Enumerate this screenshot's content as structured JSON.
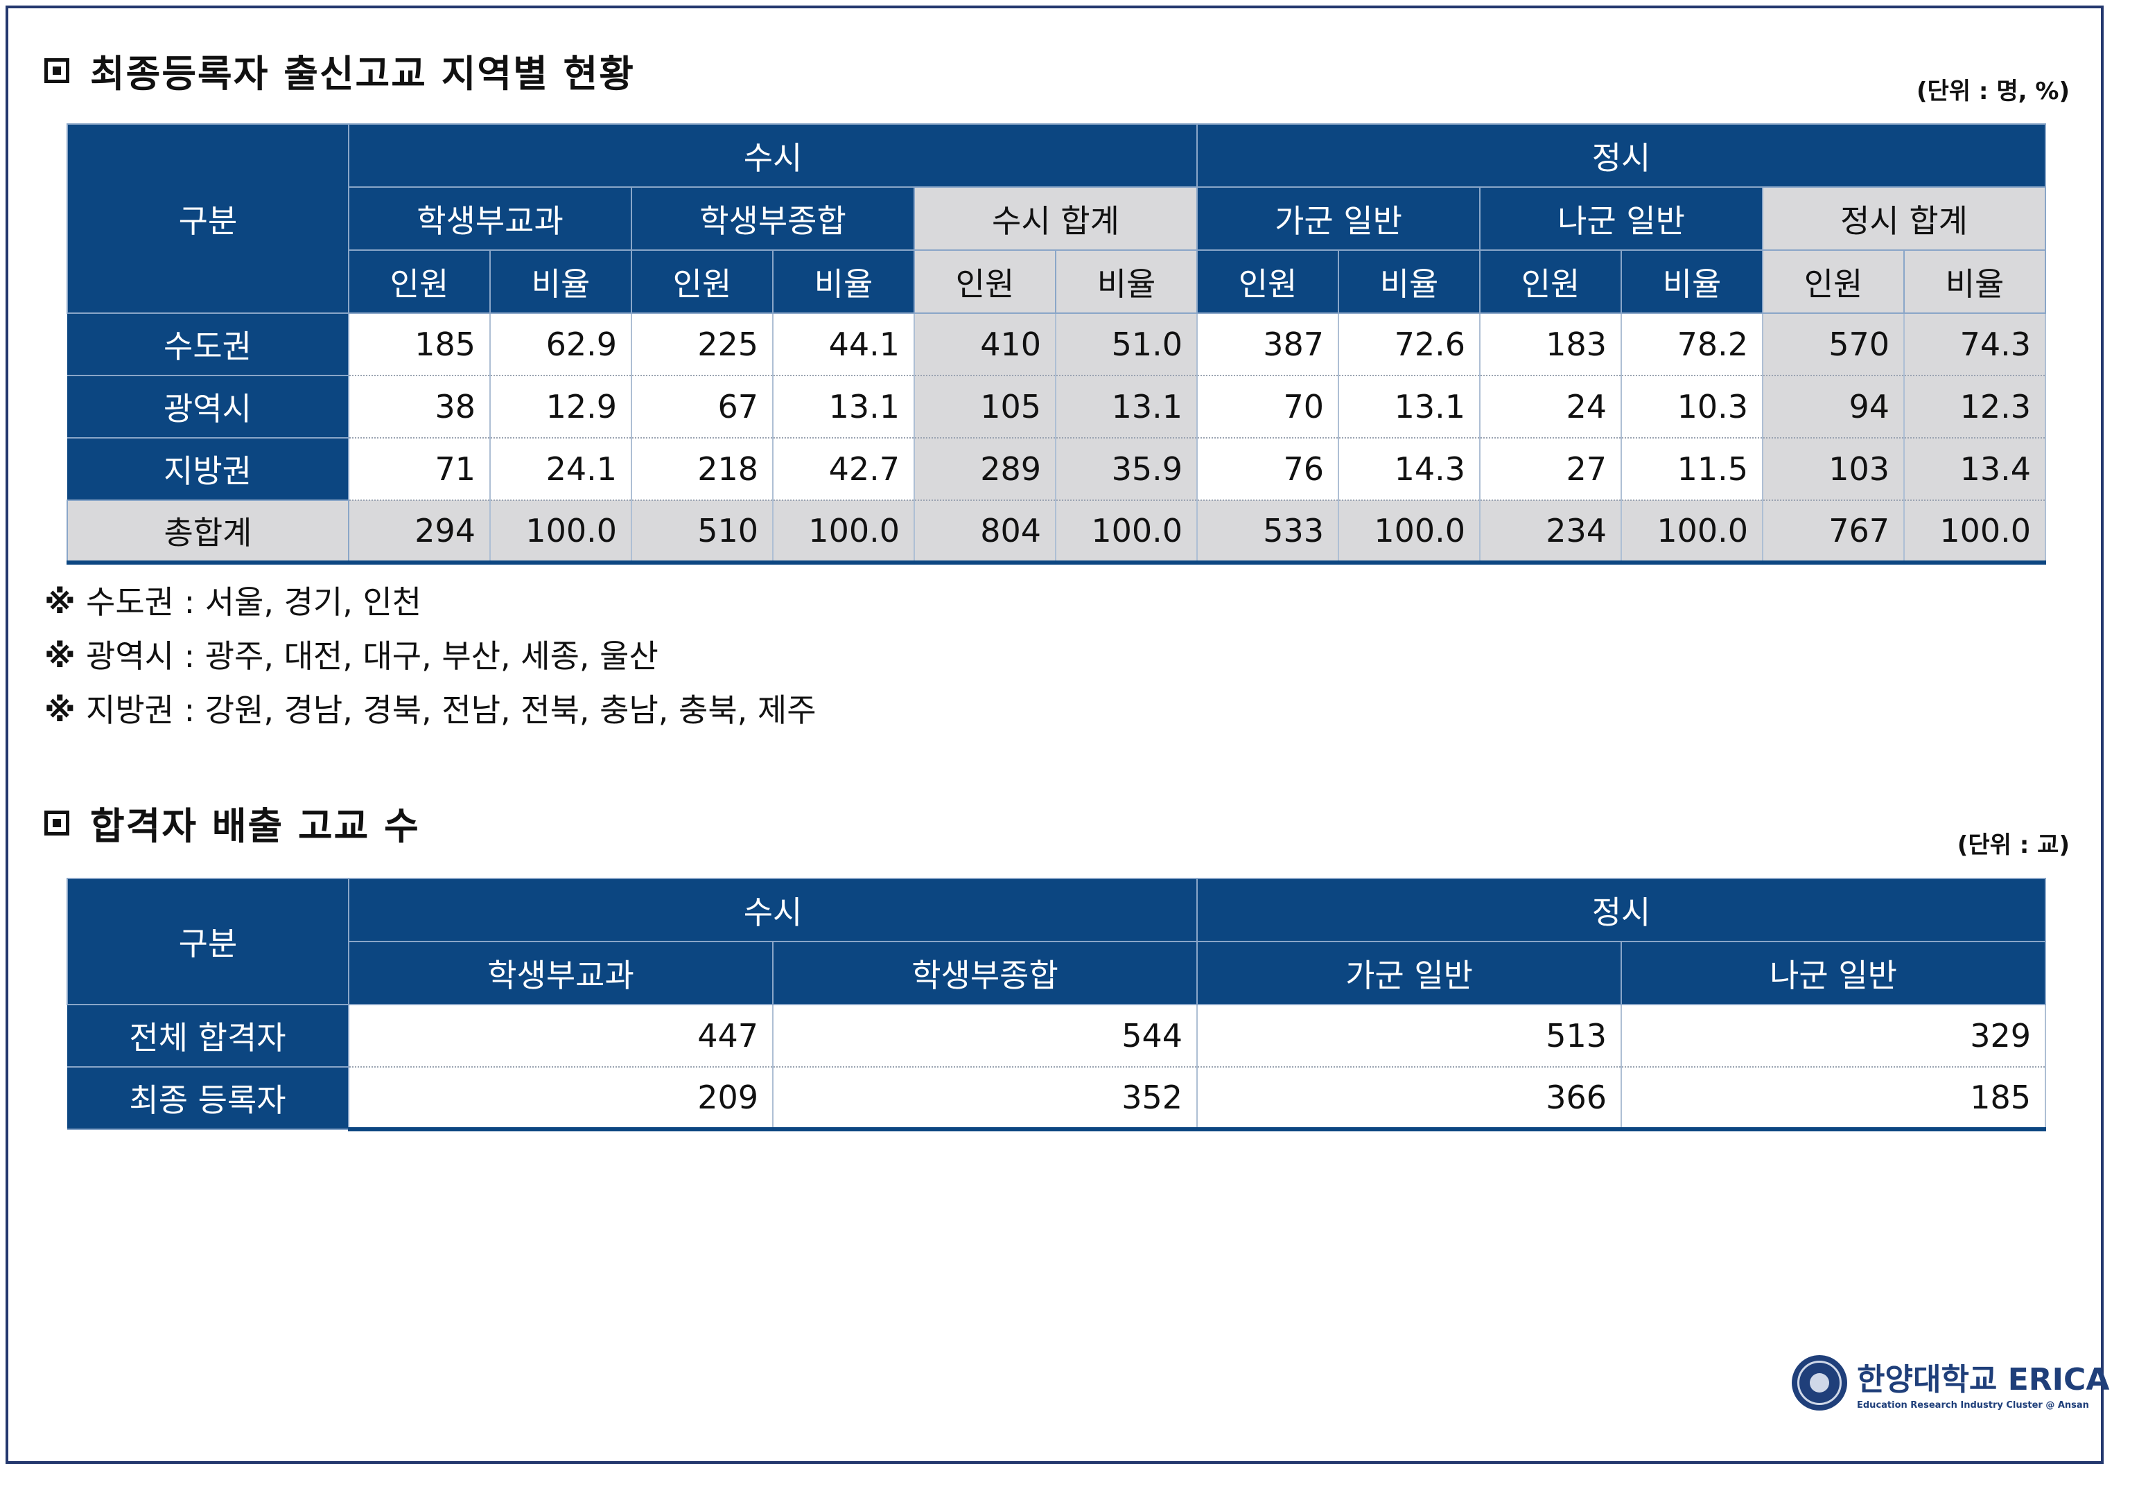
{
  "section1": {
    "title": "최종등록자 출신고교 지역별 현황",
    "unit": "(단위 : 명, %)",
    "header": {
      "group": "구분",
      "susi": "수시",
      "jeongsi": "정시",
      "sub": [
        "학생부교과",
        "학생부종합",
        "수시 합계",
        "가군 일반",
        "나군 일반",
        "정시 합계"
      ],
      "count": "인원",
      "ratio": "비율"
    },
    "rows": [
      {
        "label": "수도권",
        "values": [
          "185",
          "62.9",
          "225",
          "44.1",
          "410",
          "51.0",
          "387",
          "72.6",
          "183",
          "78.2",
          "570",
          "74.3"
        ]
      },
      {
        "label": "광역시",
        "values": [
          "38",
          "12.9",
          "67",
          "13.1",
          "105",
          "13.1",
          "70",
          "13.1",
          "24",
          "10.3",
          "94",
          "12.3"
        ]
      },
      {
        "label": "지방권",
        "values": [
          "71",
          "24.1",
          "218",
          "42.7",
          "289",
          "35.9",
          "76",
          "14.3",
          "27",
          "11.5",
          "103",
          "13.4"
        ]
      },
      {
        "label": "총합계",
        "values": [
          "294",
          "100.0",
          "510",
          "100.0",
          "804",
          "100.0",
          "533",
          "100.0",
          "234",
          "100.0",
          "767",
          "100.0"
        ]
      }
    ]
  },
  "notes": [
    {
      "mark": "※",
      "key": "수도권",
      "sep": " : ",
      "text": "서울, 경기, 인천"
    },
    {
      "mark": "※",
      "key": "광역시",
      "sep": " : ",
      "text": "광주, 대전, 대구, 부산, 세종, 울산"
    },
    {
      "mark": "※",
      "key": "지방권",
      "sep": " : ",
      "text": "강원, 경남, 경북, 전남, 전북, 충남, 충북, 제주"
    }
  ],
  "section2": {
    "title": "합격자 배출 고교 수",
    "unit": "(단위 : 교)",
    "header": {
      "group": "구분",
      "susi": "수시",
      "jeongsi": "정시",
      "sub": [
        "학생부교과",
        "학생부종합",
        "가군 일반",
        "나군 일반"
      ]
    },
    "rows": [
      {
        "label": "전체 합격자",
        "values": [
          "447",
          "544",
          "513",
          "329"
        ]
      },
      {
        "label": "최종 등록자",
        "values": [
          "209",
          "352",
          "366",
          "185"
        ]
      }
    ]
  },
  "logo": {
    "main": "한양대학교 ERICA",
    "sub": "Education Research Industry Cluster @ Ansan"
  },
  "colors": {
    "header_blue": "#0c4681",
    "summary_gray": "#d9d9db",
    "frame": "#24386e"
  }
}
